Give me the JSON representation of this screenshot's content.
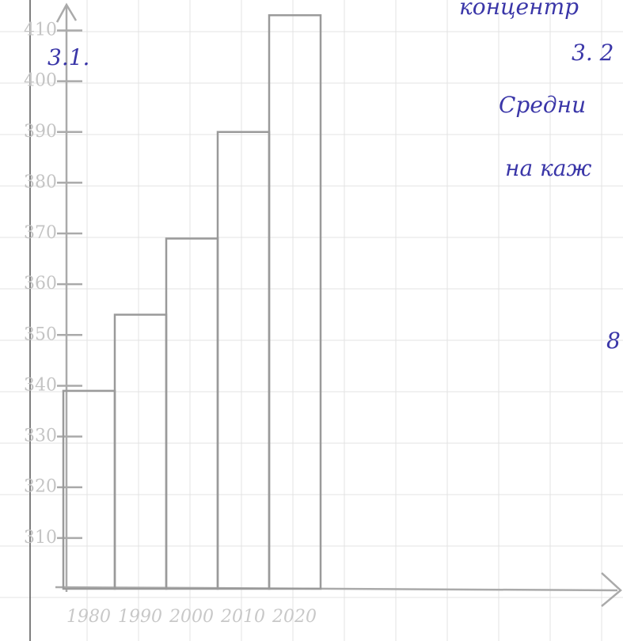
{
  "chart_data": {
    "type": "bar",
    "title": "3.1.",
    "annotations": [
      "концентр",
      "3. 2",
      "Средни",
      "на каж",
      "8"
    ],
    "categories": [
      "1980",
      "1990",
      "2000",
      "2010",
      "2020"
    ],
    "values": [
      339,
      354,
      369,
      390,
      413
    ],
    "color": "#9a9a9a",
    "ylim": [
      300,
      416
    ],
    "yticks": [
      310,
      320,
      330,
      340,
      350,
      360,
      370,
      380,
      390,
      400,
      410
    ],
    "grid": true
  }
}
